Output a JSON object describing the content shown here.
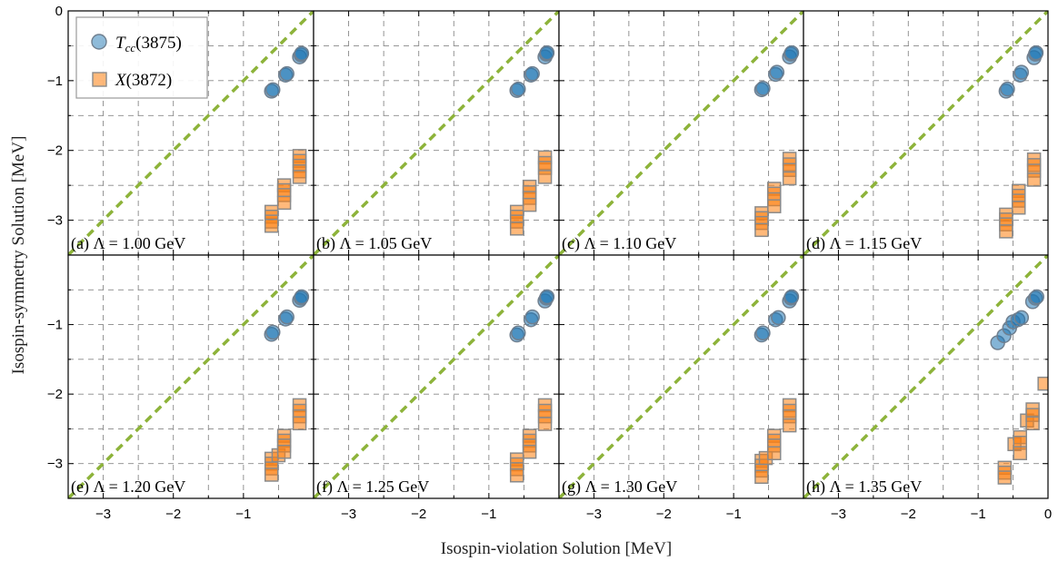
{
  "chart_data": {
    "type": "scatter",
    "layout": "2x4 grid",
    "xlabel": "Isospin-violation Solution [MeV]",
    "ylabel": "Isospin-symmetry Solution [MeV]",
    "xlim": [
      -3.5,
      0
    ],
    "ylim": [
      -3.5,
      0
    ],
    "x_ticks": [
      "−3",
      "−2",
      "−1",
      "0"
    ],
    "y_ticks_top": [
      "0",
      "−1",
      "−2",
      "−3"
    ],
    "y_ticks_bottom": [
      "−1",
      "−2",
      "−3"
    ],
    "grid": true,
    "grid_style": "dashed",
    "reference_line": {
      "type": "y=x",
      "style": "dashed",
      "color": "#8db33a"
    },
    "legend": {
      "placement": "top-left of panel (a)",
      "entries": [
        {
          "label": "T",
          "sub": "cc",
          "suffix": "(3875)",
          "marker": "circle",
          "color": "#1f77b4"
        },
        {
          "label": "X",
          "sub": "",
          "suffix": "(3872)",
          "marker": "square",
          "color": "#ff7f0e"
        }
      ]
    },
    "colors": {
      "tcc": "#1f77b4",
      "x3872": "#ff7f0e",
      "tcc_edge": "#6f7f8f",
      "x_edge": "#8a8a8a",
      "diagonal": "#8db33a",
      "grid": "#888888"
    },
    "panels": [
      {
        "label": "(a) Λ = 1.00 GeV",
        "series": [
          {
            "name": "Tcc(3875)",
            "points": [
              [
                -0.6,
                -1.15
              ],
              [
                -0.58,
                -1.13
              ],
              [
                -0.4,
                -0.92
              ],
              [
                -0.38,
                -0.9
              ],
              [
                -0.2,
                -0.66
              ],
              [
                -0.18,
                -0.63
              ],
              [
                -0.17,
                -0.61
              ]
            ]
          },
          {
            "name": "X(3872)",
            "points": [
              [
                -0.6,
                -2.88
              ],
              [
                -0.6,
                -2.95
              ],
              [
                -0.6,
                -3.02
              ],
              [
                -0.6,
                -3.08
              ],
              [
                -0.42,
                -2.5
              ],
              [
                -0.42,
                -2.57
              ],
              [
                -0.42,
                -2.64
              ],
              [
                -0.42,
                -2.75
              ],
              [
                -0.2,
                -2.08
              ],
              [
                -0.2,
                -2.15
              ],
              [
                -0.2,
                -2.22
              ],
              [
                -0.2,
                -2.3
              ],
              [
                -0.2,
                -2.38
              ]
            ]
          }
        ]
      },
      {
        "label": "(b) Λ = 1.05 GeV",
        "series": [
          {
            "name": "Tcc(3875)",
            "points": [
              [
                -0.6,
                -1.14
              ],
              [
                -0.58,
                -1.12
              ],
              [
                -0.4,
                -0.92
              ],
              [
                -0.38,
                -0.9
              ],
              [
                -0.2,
                -0.66
              ],
              [
                -0.18,
                -0.62
              ],
              [
                -0.17,
                -0.6
              ]
            ]
          },
          {
            "name": "X(3872)",
            "points": [
              [
                -0.6,
                -2.88
              ],
              [
                -0.6,
                -2.95
              ],
              [
                -0.6,
                -3.02
              ],
              [
                -0.6,
                -3.12
              ],
              [
                -0.42,
                -2.52
              ],
              [
                -0.42,
                -2.6
              ],
              [
                -0.42,
                -2.68
              ],
              [
                -0.42,
                -2.78
              ],
              [
                -0.2,
                -2.1
              ],
              [
                -0.2,
                -2.18
              ],
              [
                -0.2,
                -2.25
              ],
              [
                -0.2,
                -2.38
              ]
            ]
          }
        ]
      },
      {
        "label": "(c) Λ = 1.10 GeV",
        "series": [
          {
            "name": "Tcc(3875)",
            "points": [
              [
                -0.6,
                -1.13
              ],
              [
                -0.58,
                -1.11
              ],
              [
                -0.4,
                -0.91
              ],
              [
                -0.38,
                -0.88
              ],
              [
                -0.2,
                -0.66
              ],
              [
                -0.18,
                -0.62
              ],
              [
                -0.17,
                -0.6
              ]
            ]
          },
          {
            "name": "X(3872)",
            "points": [
              [
                -0.6,
                -2.9
              ],
              [
                -0.6,
                -2.97
              ],
              [
                -0.6,
                -3.04
              ],
              [
                -0.6,
                -3.14
              ],
              [
                -0.42,
                -2.55
              ],
              [
                -0.42,
                -2.62
              ],
              [
                -0.42,
                -2.7
              ],
              [
                -0.42,
                -2.8
              ],
              [
                -0.2,
                -2.12
              ],
              [
                -0.2,
                -2.2
              ],
              [
                -0.2,
                -2.28
              ],
              [
                -0.2,
                -2.4
              ]
            ]
          }
        ]
      },
      {
        "label": "(d) Λ = 1.15 GeV",
        "series": [
          {
            "name": "Tcc(3875)",
            "points": [
              [
                -0.6,
                -1.15
              ],
              [
                -0.58,
                -1.12
              ],
              [
                -0.4,
                -0.92
              ],
              [
                -0.38,
                -0.88
              ],
              [
                -0.2,
                -0.67
              ],
              [
                -0.18,
                -0.62
              ],
              [
                -0.17,
                -0.6
              ]
            ]
          },
          {
            "name": "X(3872)",
            "points": [
              [
                -0.6,
                -2.92
              ],
              [
                -0.6,
                -2.99
              ],
              [
                -0.6,
                -3.06
              ],
              [
                -0.6,
                -3.16
              ],
              [
                -0.42,
                -2.58
              ],
              [
                -0.42,
                -2.65
              ],
              [
                -0.42,
                -2.72
              ],
              [
                -0.42,
                -2.82
              ],
              [
                -0.2,
                -2.13
              ],
              [
                -0.2,
                -2.21
              ],
              [
                -0.2,
                -2.29
              ],
              [
                -0.2,
                -2.42
              ]
            ]
          }
        ]
      },
      {
        "label": "(e) Λ = 1.20 GeV",
        "series": [
          {
            "name": "Tcc(3875)",
            "points": [
              [
                -0.6,
                -1.14
              ],
              [
                -0.58,
                -1.11
              ],
              [
                -0.4,
                -0.92
              ],
              [
                -0.38,
                -0.89
              ],
              [
                -0.2,
                -0.65
              ],
              [
                -0.18,
                -0.62
              ],
              [
                -0.17,
                -0.6
              ]
            ]
          },
          {
            "name": "X(3872)",
            "points": [
              [
                -0.6,
                -2.93
              ],
              [
                -0.6,
                -3.0
              ],
              [
                -0.6,
                -3.07
              ],
              [
                -0.6,
                -3.16
              ],
              [
                -0.5,
                -2.88
              ],
              [
                -0.42,
                -2.6
              ],
              [
                -0.42,
                -2.67
              ],
              [
                -0.42,
                -2.74
              ],
              [
                -0.42,
                -2.83
              ],
              [
                -0.2,
                -2.16
              ],
              [
                -0.2,
                -2.24
              ],
              [
                -0.2,
                -2.32
              ],
              [
                -0.2,
                -2.42
              ]
            ]
          }
        ]
      },
      {
        "label": "(f) Λ = 1.25 GeV",
        "series": [
          {
            "name": "Tcc(3875)",
            "points": [
              [
                -0.6,
                -1.15
              ],
              [
                -0.58,
                -1.12
              ],
              [
                -0.4,
                -0.93
              ],
              [
                -0.38,
                -0.89
              ],
              [
                -0.2,
                -0.66
              ],
              [
                -0.18,
                -0.62
              ],
              [
                -0.17,
                -0.6
              ]
            ]
          },
          {
            "name": "X(3872)",
            "points": [
              [
                -0.6,
                -2.94
              ],
              [
                -0.6,
                -3.01
              ],
              [
                -0.6,
                -3.08
              ],
              [
                -0.6,
                -3.17
              ],
              [
                -0.42,
                -2.6
              ],
              [
                -0.42,
                -2.67
              ],
              [
                -0.42,
                -2.74
              ],
              [
                -0.42,
                -2.83
              ],
              [
                -0.2,
                -2.16
              ],
              [
                -0.2,
                -2.24
              ],
              [
                -0.2,
                -2.32
              ],
              [
                -0.2,
                -2.43
              ]
            ]
          }
        ]
      },
      {
        "label": "(g) Λ = 1.30 GeV",
        "series": [
          {
            "name": "Tcc(3875)",
            "points": [
              [
                -0.6,
                -1.15
              ],
              [
                -0.58,
                -1.12
              ],
              [
                -0.4,
                -0.93
              ],
              [
                -0.36,
                -0.9
              ],
              [
                -0.2,
                -0.66
              ],
              [
                -0.18,
                -0.62
              ],
              [
                -0.17,
                -0.6
              ]
            ]
          },
          {
            "name": "X(3872)",
            "points": [
              [
                -0.6,
                -2.96
              ],
              [
                -0.6,
                -3.03
              ],
              [
                -0.6,
                -3.1
              ],
              [
                -0.6,
                -3.19
              ],
              [
                -0.54,
                -2.92
              ],
              [
                -0.42,
                -2.6
              ],
              [
                -0.42,
                -2.67
              ],
              [
                -0.42,
                -2.74
              ],
              [
                -0.42,
                -2.85
              ],
              [
                -0.2,
                -2.16
              ],
              [
                -0.2,
                -2.24
              ],
              [
                -0.2,
                -2.32
              ],
              [
                -0.2,
                -2.45
              ]
            ]
          }
        ]
      },
      {
        "label": "(h) Λ = 1.35 GeV",
        "series": [
          {
            "name": "Tcc(3875)",
            "points": [
              [
                -0.72,
                -1.26
              ],
              [
                -0.63,
                -1.16
              ],
              [
                -0.55,
                -1.05
              ],
              [
                -0.5,
                -0.96
              ],
              [
                -0.43,
                -0.93
              ],
              [
                -0.38,
                -0.9
              ],
              [
                -0.22,
                -0.67
              ],
              [
                -0.18,
                -0.62
              ],
              [
                -0.16,
                -0.6
              ]
            ]
          },
          {
            "name": "X(3872)",
            "points": [
              [
                -0.62,
                -3.06
              ],
              [
                -0.62,
                -3.13
              ],
              [
                -0.62,
                -3.2
              ],
              [
                -0.48,
                -2.72
              ],
              [
                -0.4,
                -2.62
              ],
              [
                -0.4,
                -2.7
              ],
              [
                -0.4,
                -2.85
              ],
              [
                -0.3,
                -2.38
              ],
              [
                -0.22,
                -2.22
              ],
              [
                -0.22,
                -2.3
              ],
              [
                -0.22,
                -2.42
              ],
              [
                -0.05,
                -1.85
              ]
            ]
          }
        ]
      }
    ]
  }
}
